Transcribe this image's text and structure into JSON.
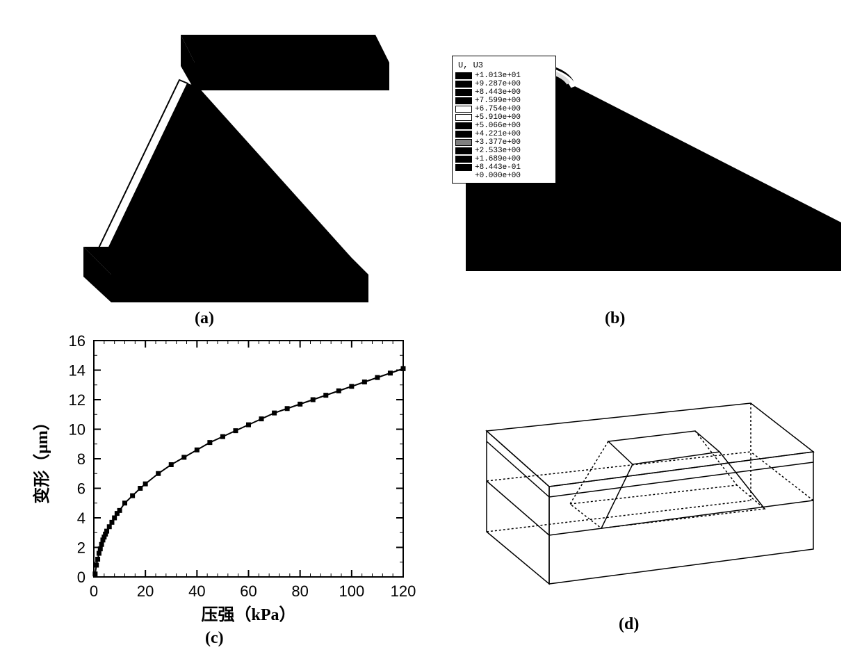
{
  "panel_a": {
    "label": "(a)",
    "fill": "#000000"
  },
  "panel_b": {
    "label": "(b)",
    "fill": "#000000",
    "legend_title": "U, U3",
    "legend_values": [
      "+1.013e+01",
      "+9.287e+00",
      "+8.443e+00",
      "+7.599e+00",
      "+6.754e+00",
      "+5.910e+00",
      "+5.066e+00",
      "+4.221e+00",
      "+3.377e+00",
      "+2.533e+00",
      "+1.689e+00",
      "+8.443e-01",
      "+0.000e+00"
    ],
    "legend_colors": [
      "#000000",
      "#000000",
      "#000000",
      "#000000",
      "#ffffff",
      "#ffffff",
      "#000000",
      "#000000",
      "#808080",
      "#000000",
      "#000000",
      "#000000"
    ]
  },
  "panel_c": {
    "label": "(c)",
    "type": "scatter-line",
    "xlabel": "压强（kPa）",
    "ylabel": "变形（μm）",
    "label_fontsize": 24,
    "tick_fontsize": 22,
    "xlim": [
      0,
      120
    ],
    "ylim": [
      0,
      16
    ],
    "xtick_step": 20,
    "ytick_step": 2,
    "xminor_per_major": 5,
    "yminor_per_major": 2,
    "marker": "square",
    "marker_size": 7,
    "marker_color": "#000000",
    "line_color": "#000000",
    "line_width": 2,
    "axis_line_width": 2,
    "background_color": "#ffffff",
    "x_values": [
      0.5,
      1,
      1.5,
      2,
      2.5,
      3,
      3.5,
      4,
      4.5,
      5,
      6,
      7,
      8,
      9,
      10,
      12,
      15,
      18,
      20,
      25,
      30,
      35,
      40,
      45,
      50,
      55,
      60,
      65,
      70,
      75,
      80,
      85,
      90,
      95,
      100,
      105,
      110,
      115,
      120
    ],
    "y_values": [
      0.2,
      0.8,
      1.2,
      1.6,
      1.9,
      2.2,
      2.5,
      2.7,
      2.9,
      3.1,
      3.4,
      3.7,
      4.0,
      4.3,
      4.5,
      5.0,
      5.5,
      6.0,
      6.3,
      7.0,
      7.6,
      8.1,
      8.6,
      9.1,
      9.5,
      9.9,
      10.3,
      10.7,
      11.1,
      11.4,
      11.7,
      12.0,
      12.3,
      12.6,
      12.9,
      13.2,
      13.5,
      13.8,
      14.1
    ]
  },
  "panel_d": {
    "label": "(d)",
    "stroke": "#000000",
    "stroke_width": 1.5
  }
}
